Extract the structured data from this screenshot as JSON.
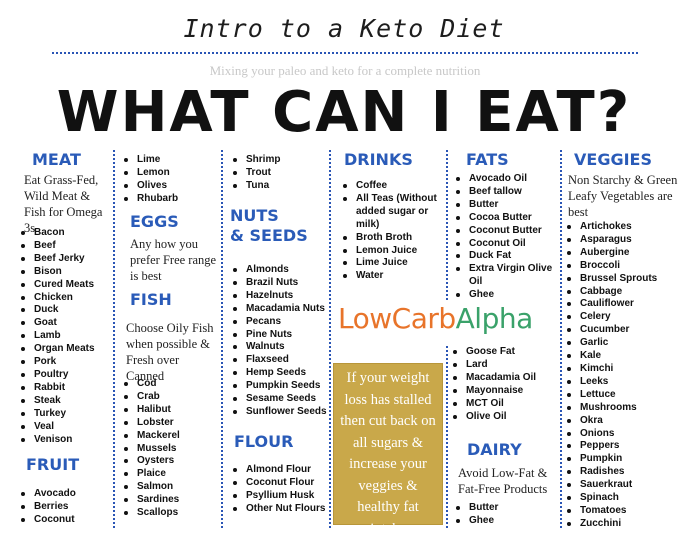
{
  "intro_title": "Intro to a Keto Diet",
  "faded_subtitle": "Mixing your paleo and keto for a complete nutrition",
  "headline": "WHAT CAN I EAT?",
  "meat": {
    "heading": "MEAT",
    "note": "Eat Grass-Fed, Wild Meat & Fish for Omega 3s",
    "items": [
      "Bacon",
      "Beef",
      "Beef Jerky",
      "Bison",
      "Cured Meats",
      "Chicken",
      "Duck",
      "Goat",
      "Lamb",
      "Organ Meats",
      "Pork",
      "Poultry",
      "Rabbit",
      "Steak",
      "Turkey",
      "Veal",
      "Venison"
    ]
  },
  "fruit": {
    "heading": "FRUIT",
    "items": [
      "Avocado",
      "Berries",
      "Coconut"
    ]
  },
  "fruit_cont": {
    "items": [
      "Lime",
      "Lemon",
      "Olives",
      "Rhubarb"
    ]
  },
  "eggs": {
    "heading": "EGGS",
    "note": "Any how you prefer Free range is best"
  },
  "fish": {
    "heading": "FISH",
    "note": "Choose Oily Fish when possible & Fresh over Canned",
    "items": [
      "Cod",
      "Crab",
      "Halibut",
      "Lobster",
      "Mackerel",
      "Mussels",
      "Oysters",
      "Plaice",
      "Salmon",
      "Sardines",
      "Scallops"
    ]
  },
  "fish_cont": {
    "items": [
      "Shrimp",
      "Trout",
      "Tuna"
    ]
  },
  "nuts": {
    "heading_line1": "NUTS",
    "heading_line2": "& SEEDS",
    "items": [
      "Almonds",
      "Brazil Nuts",
      "Hazelnuts",
      "Macadamia Nuts",
      "Pecans",
      "Pine Nuts",
      "Walnuts",
      "Flaxseed",
      "Hemp Seeds",
      "Pumpkin Seeds",
      "Sesame Seeds",
      "Sunflower Seeds"
    ]
  },
  "flour": {
    "heading": "FLOUR",
    "items": [
      "Almond Flour",
      "Coconut Flour",
      "Psyllium Husk",
      "Other Nut Flours"
    ]
  },
  "drinks": {
    "heading": "DRINKS",
    "items": [
      "Coffee",
      "All Teas (Without added sugar or milk)",
      "Broth Broth",
      "Lemon Juice",
      "Lime Juice",
      "Water"
    ]
  },
  "fats": {
    "heading": "FATS",
    "items": [
      "Avocado Oil",
      "Beef tallow",
      "Butter",
      "Cocoa Butter",
      "Coconut Butter",
      "Coconut Oil",
      "Duck Fat",
      "Extra Virgin Olive Oil",
      "Ghee"
    ]
  },
  "fats_cont": {
    "items": [
      "Goose Fat",
      "Lard",
      "Macadamia Oil",
      "Mayonnaise",
      "MCT Oil",
      "Olive Oil"
    ]
  },
  "dairy": {
    "heading": "DAIRY",
    "note": "Avoid Low-Fat & Fat-Free Products",
    "items": [
      "Butter",
      "Ghee"
    ]
  },
  "veggies": {
    "heading": "VEGGIES",
    "note": "Non Starchy & Green Leafy Vegetables are best",
    "items": [
      "Artichokes",
      "Asparagus",
      "Aubergine",
      "Broccoli",
      "Brussel Sprouts",
      "Cabbage",
      "Cauliflower",
      "Celery",
      "Cucumber",
      "Garlic",
      "Kale",
      "Kimchi",
      "Leeks",
      "Lettuce",
      "Mushrooms",
      "Okra",
      "Onions",
      "Peppers",
      "Pumpkin",
      "Radishes",
      "Sauerkraut",
      "Spinach",
      "Tomatoes",
      "Zucchini"
    ]
  },
  "logo": {
    "part1": "Low",
    "part2": "Carb",
    "part3": "Alpha"
  },
  "tip": "If your weight loss has stalled then cut back on all sugars & increase your veggies & healthy fat intake",
  "colors": {
    "heading_blue": "#2a5bb8",
    "tip_gold": "#c9a84a",
    "logo_orange": "#e8742a",
    "logo_green": "#3aa26a"
  }
}
